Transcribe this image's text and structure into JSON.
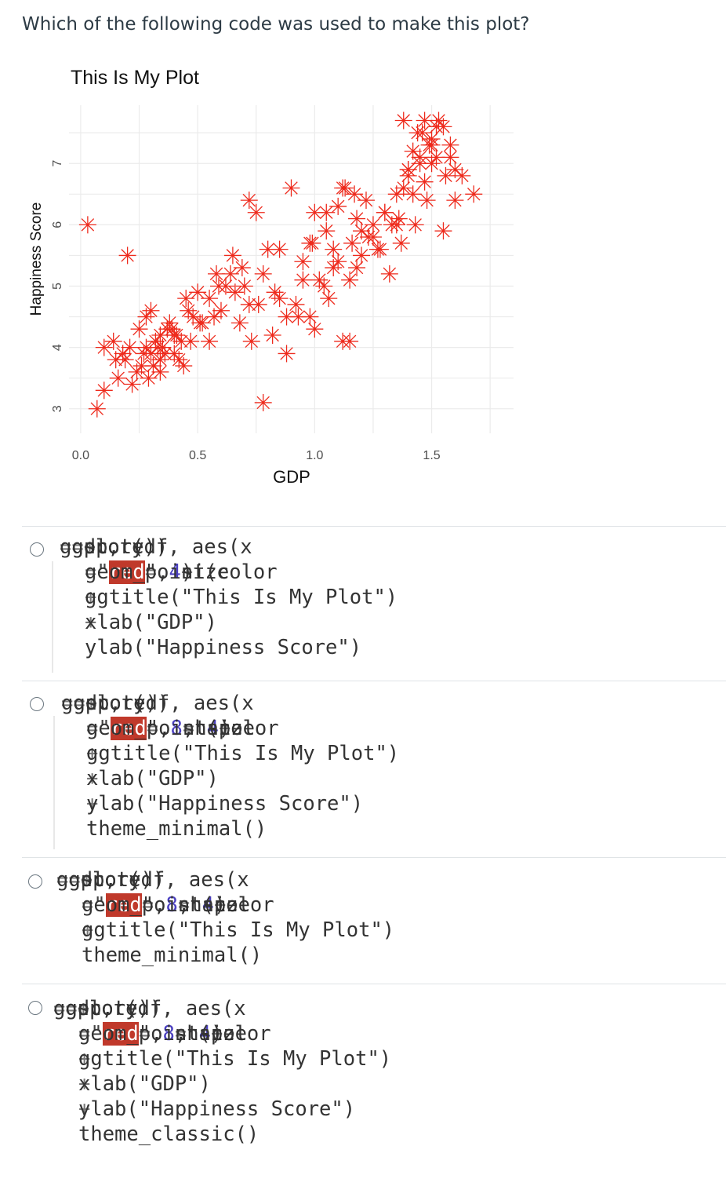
{
  "question": "Which of the following code was used to make this plot?",
  "chart_data": {
    "type": "scatter",
    "title": "This Is My Plot",
    "xlabel": "GDP",
    "ylabel": "Happiness Score",
    "xlim": [
      -0.05,
      1.85
    ],
    "ylim": [
      2.6,
      7.95
    ],
    "xticks": [
      "0.0",
      "0.5",
      "1.0",
      "1.5"
    ],
    "yticks": [
      "3",
      "4",
      "5",
      "6",
      "7"
    ],
    "marker": "asterisk",
    "color": "#ee2a1c",
    "grid": true,
    "x": [
      0.03,
      0.07,
      0.18,
      0.1,
      0.14,
      0.1,
      0.15,
      0.2,
      0.25,
      0.28,
      0.32,
      0.26,
      0.3,
      0.34,
      0.22,
      0.29,
      0.33,
      0.4,
      0.45,
      0.38,
      0.42,
      0.5,
      0.47,
      0.52,
      0.36,
      0.41,
      0.44,
      0.55,
      0.58,
      0.6,
      0.62,
      0.65,
      0.7,
      0.68,
      0.73,
      0.78,
      0.75,
      0.8,
      0.85,
      0.82,
      0.88,
      0.92,
      0.95,
      0.98,
      1.0,
      1.02,
      1.04,
      1.06,
      1.08,
      1.1,
      1.12,
      1.15,
      1.18,
      1.2,
      1.22,
      1.25,
      1.28,
      1.3,
      1.33,
      1.35,
      1.38,
      1.4,
      1.42,
      1.44,
      1.46,
      1.48,
      1.5,
      1.52,
      1.55,
      1.58,
      1.6,
      1.63,
      1.68,
      0.72,
      0.9,
      1.0,
      1.05,
      1.1,
      1.15,
      0.85,
      0.93,
      1.08,
      1.2,
      1.25,
      1.3,
      1.35,
      1.4,
      1.45,
      1.5,
      1.55,
      1.4,
      1.42,
      1.47,
      1.5,
      1.52,
      1.37,
      1.43,
      1.32,
      1.27,
      1.23,
      1.16,
      1.12,
      1.18,
      1.13,
      0.98,
      0.95,
      0.88,
      0.83,
      0.78,
      0.76,
      0.64,
      0.59,
      0.55,
      0.51,
      0.46,
      0.43,
      0.39,
      0.34,
      0.31,
      0.27,
      0.24,
      0.21,
      0.19,
      0.16,
      0.35,
      0.37,
      0.3,
      0.28,
      0.34,
      0.4,
      0.48,
      0.57,
      0.66,
      0.69,
      0.72,
      0.99,
      1.05,
      1.17,
      1.36,
      1.45,
      1.49,
      1.53,
      1.56,
      1.6,
      1.58,
      1.47,
      1.38
    ],
    "y": [
      6.0,
      3.0,
      3.9,
      3.3,
      4.1,
      4.0,
      3.8,
      5.5,
      4.3,
      4.5,
      4.1,
      3.7,
      3.9,
      3.6,
      3.4,
      3.5,
      4.0,
      4.2,
      4.8,
      4.4,
      3.8,
      4.9,
      4.1,
      4.4,
      3.9,
      4.2,
      3.7,
      4.1,
      5.2,
      4.6,
      5.0,
      5.5,
      5.0,
      4.4,
      4.1,
      3.1,
      6.2,
      5.6,
      5.6,
      4.2,
      3.9,
      4.7,
      5.4,
      4.5,
      4.3,
      5.1,
      5.0,
      4.8,
      5.3,
      6.3,
      4.1,
      4.1,
      5.3,
      5.5,
      6.4,
      5.8,
      5.6,
      6.2,
      6.0,
      6.0,
      6.6,
      6.9,
      7.2,
      7.5,
      7.5,
      6.4,
      7.0,
      7.6,
      5.9,
      7.3,
      6.4,
      6.8,
      6.5,
      6.4,
      6.6,
      6.2,
      5.9,
      5.4,
      5.1,
      4.8,
      4.5,
      5.6,
      5.9,
      6.0,
      6.2,
      6.5,
      6.8,
      7.1,
      7.3,
      7.6,
      6.9,
      6.5,
      6.7,
      7.4,
      7.1,
      5.7,
      6.0,
      5.2,
      5.6,
      5.8,
      5.7,
      6.6,
      6.1,
      6.6,
      5.7,
      5.1,
      4.5,
      4.9,
      5.2,
      4.7,
      5.2,
      5.0,
      4.8,
      4.4,
      4.6,
      4.1,
      4.3,
      3.8,
      3.7,
      3.9,
      3.6,
      4.0,
      3.8,
      3.5,
      4.0,
      4.3,
      4.6,
      4.0,
      4.2,
      3.9,
      4.5,
      4.5,
      4.9,
      5.3,
      4.7,
      5.7,
      6.2,
      6.5,
      6.1,
      7.0,
      7.3,
      7.7,
      6.8,
      6.9,
      7.1,
      7.7,
      7.7
    ],
    "panel_background": "#ffffff",
    "grid_color": "#ebebeb"
  },
  "options": [
    {
      "lines": [
        [
          {
            "t": "ggplot(df, aes(x",
            "c": "code"
          },
          {
            "t": "=",
            "c": "eq"
          },
          {
            "t": "gdp, y",
            "c": "code"
          },
          {
            "t": "=",
            "c": "eq"
          },
          {
            "t": "score)) ",
            "c": "code"
          },
          {
            "t": "+",
            "c": "eq"
          }
        ],
        [
          {
            "t": "geom_point(color",
            "c": "code"
          },
          {
            "t": "=",
            "c": "eq"
          },
          {
            "t": "\"",
            "c": "str"
          },
          {
            "t": "red",
            "c": "hl"
          },
          {
            "t": "\", size ",
            "c": "code"
          },
          {
            "t": "=",
            "c": "eq"
          },
          {
            "t": " 4",
            "c": "num"
          },
          {
            "t": ") ",
            "c": "code"
          },
          {
            "t": "+",
            "c": "eq"
          }
        ],
        [
          {
            "t": "ggtitle(\"This Is My Plot\") ",
            "c": "code"
          },
          {
            "t": "+",
            "c": "eq"
          }
        ],
        [
          {
            "t": "xlab(\"GDP\") ",
            "c": "code"
          },
          {
            "t": "+",
            "c": "eq"
          }
        ],
        [
          {
            "t": "ylab(\"Happiness Score\")",
            "c": "code"
          }
        ]
      ]
    },
    {
      "lines": [
        [
          {
            "t": "ggplot(df, aes(x",
            "c": "code"
          },
          {
            "t": "=",
            "c": "eq"
          },
          {
            "t": "gdp, y",
            "c": "code"
          },
          {
            "t": "=",
            "c": "eq"
          },
          {
            "t": "score)) ",
            "c": "code"
          },
          {
            "t": "+",
            "c": "eq"
          }
        ],
        [
          {
            "t": "geom_point(color",
            "c": "code"
          },
          {
            "t": "=",
            "c": "eq"
          },
          {
            "t": "\"",
            "c": "str"
          },
          {
            "t": "red",
            "c": "hl"
          },
          {
            "t": "\", shape ",
            "c": "code"
          },
          {
            "t": "=",
            "c": "eq"
          },
          {
            "t": " 8",
            "c": "num"
          },
          {
            "t": ", size ",
            "c": "code"
          },
          {
            "t": "=",
            "c": "eq"
          },
          {
            "t": " 4",
            "c": "num"
          },
          {
            "t": ") ",
            "c": "code"
          },
          {
            "t": "+",
            "c": "eq"
          }
        ],
        [
          {
            "t": "ggtitle(\"This Is My Plot\") ",
            "c": "code"
          },
          {
            "t": "+",
            "c": "eq"
          }
        ],
        [
          {
            "t": "xlab(\"GDP\") ",
            "c": "code"
          },
          {
            "t": "+",
            "c": "eq"
          }
        ],
        [
          {
            "t": "ylab(\"Happiness Score\") ",
            "c": "code"
          },
          {
            "t": "+",
            "c": "eq"
          }
        ],
        [
          {
            "t": "theme_minimal()",
            "c": "code"
          }
        ]
      ]
    },
    {
      "lines": [
        [
          {
            "t": "ggplot(df, aes(x",
            "c": "code"
          },
          {
            "t": "=",
            "c": "eq"
          },
          {
            "t": "gdp, y",
            "c": "code"
          },
          {
            "t": "=",
            "c": "eq"
          },
          {
            "t": "score)) ",
            "c": "code"
          },
          {
            "t": "+",
            "c": "eq"
          }
        ],
        [
          {
            "t": "geom_point(color",
            "c": "code"
          },
          {
            "t": "=",
            "c": "eq"
          },
          {
            "t": "\"",
            "c": "str"
          },
          {
            "t": "red",
            "c": "hl"
          },
          {
            "t": "\", shape ",
            "c": "code"
          },
          {
            "t": "=",
            "c": "eq"
          },
          {
            "t": " 8",
            "c": "num"
          },
          {
            "t": ", size ",
            "c": "code"
          },
          {
            "t": "=",
            "c": "eq"
          },
          {
            "t": " 4",
            "c": "num"
          },
          {
            "t": ") ",
            "c": "code"
          },
          {
            "t": "+",
            "c": "eq"
          }
        ],
        [
          {
            "t": "ggtitle(\"This Is My Plot\") ",
            "c": "code"
          },
          {
            "t": "+",
            "c": "eq"
          }
        ],
        [
          {
            "t": "theme_minimal()",
            "c": "code"
          }
        ]
      ]
    },
    {
      "lines": [
        [
          {
            "t": "ggplot(df, aes(x",
            "c": "code"
          },
          {
            "t": "=",
            "c": "eq"
          },
          {
            "t": "gdp, y",
            "c": "code"
          },
          {
            "t": "=",
            "c": "eq"
          },
          {
            "t": "score)) ",
            "c": "code"
          },
          {
            "t": "+",
            "c": "eq"
          }
        ],
        [
          {
            "t": "geom_point(color",
            "c": "code"
          },
          {
            "t": "=",
            "c": "eq"
          },
          {
            "t": "\"",
            "c": "str"
          },
          {
            "t": "red",
            "c": "hl"
          },
          {
            "t": "\", shape ",
            "c": "code"
          },
          {
            "t": "=",
            "c": "eq"
          },
          {
            "t": " 8",
            "c": "num"
          },
          {
            "t": ", size ",
            "c": "code"
          },
          {
            "t": "=",
            "c": "eq"
          },
          {
            "t": " 4",
            "c": "num"
          },
          {
            "t": ") ",
            "c": "code"
          },
          {
            "t": "+",
            "c": "eq"
          }
        ],
        [
          {
            "t": "ggtitle(\"This Is My Plot\") ",
            "c": "code"
          },
          {
            "t": "+",
            "c": "eq"
          }
        ],
        [
          {
            "t": "xlab(\"GDP\") ",
            "c": "code"
          },
          {
            "t": "+",
            "c": "eq"
          }
        ],
        [
          {
            "t": "ylab(\"Happiness Score\") ",
            "c": "code"
          },
          {
            "t": "+",
            "c": "eq"
          }
        ],
        [
          {
            "t": "theme_classic()",
            "c": "code"
          }
        ]
      ]
    }
  ]
}
